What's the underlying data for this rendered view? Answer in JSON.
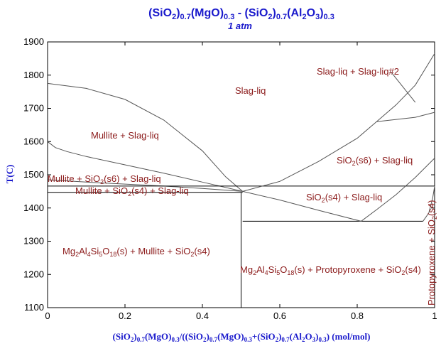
{
  "chart_data": {
    "type": "phase-diagram",
    "title": {
      "pre": "(SiO",
      "s1": "2",
      "m1": ")",
      "s2": "0.7",
      "m2": "(MgO)",
      "s3": "0.3",
      "m3": " - (SiO",
      "s4": "2",
      "m4": ")",
      "s5": "0.7",
      "m5": "(Al",
      "s6": "2",
      "m6": "O",
      "s7": "3",
      "m7": ")",
      "s8": "0.3"
    },
    "subtitle": "1 atm",
    "ylabel": "T(C)",
    "xlabel": {
      "a": "(SiO",
      "b": "2",
      "c": ")",
      "d": "0.7",
      "e": "(MgO)",
      "f": "0.3",
      "g": "/((SiO",
      "h": "2",
      "i": ")",
      "j": "0.7",
      "k": "(MgO)",
      "l": "0.3",
      "m": "+(SiO",
      "n": "2",
      "o": ")",
      "p": "0.7",
      "q": "(Al",
      "r": "2",
      "s": "O",
      "t": "3",
      "u": ")",
      "v": "0.3",
      "w": ") (mol/mol)"
    },
    "xlim": [
      0,
      1
    ],
    "ylim": [
      1100,
      1900
    ],
    "xticks": [
      "0",
      "0.2",
      "0.4",
      "0.6",
      "0.8",
      "1"
    ],
    "xtick_values": [
      0,
      0.2,
      0.4,
      0.6,
      0.8,
      1
    ],
    "yticks": [
      "1100",
      "1200",
      "1300",
      "1400",
      "1500",
      "1600",
      "1700",
      "1800",
      "1900"
    ],
    "ytick_values": [
      1100,
      1200,
      1300,
      1400,
      1500,
      1600,
      1700,
      1800,
      1900
    ],
    "grid": false,
    "colors": {
      "title": "#1a1acc",
      "labels": "#8b1a1a",
      "boundary": "#555555"
    },
    "boundaries": [
      {
        "name": "mullite-liquidus",
        "points": [
          [
            0,
            1775
          ],
          [
            0.1,
            1760
          ],
          [
            0.2,
            1727
          ],
          [
            0.3,
            1665
          ],
          [
            0.4,
            1572
          ],
          [
            0.46,
            1494
          ],
          [
            0.504,
            1450
          ]
        ]
      },
      {
        "name": "sio2-s6-mullite-upper",
        "points": [
          [
            0,
            1600
          ],
          [
            0.02,
            1582
          ],
          [
            0.05,
            1570
          ],
          [
            0.1,
            1555
          ],
          [
            0.2,
            1530
          ],
          [
            0.3,
            1505
          ],
          [
            0.4,
            1478
          ],
          [
            0.504,
            1450
          ]
        ]
      },
      {
        "name": "sio2-s6-mullite-lower",
        "points": [
          [
            0,
            1485
          ],
          [
            0.1,
            1478
          ],
          [
            0.2,
            1472
          ],
          [
            0.3,
            1466
          ],
          [
            0.4,
            1459
          ],
          [
            0.504,
            1450
          ]
        ]
      },
      {
        "name": "mullite-eutectic-line",
        "points": [
          [
            0,
            1447
          ],
          [
            0.504,
            1447
          ]
        ]
      },
      {
        "name": "s6-s4-transition",
        "points": [
          [
            0,
            1466
          ],
          [
            1,
            1466
          ]
        ]
      },
      {
        "name": "cordierite-join",
        "points": [
          [
            0.5,
            1100
          ],
          [
            0.5,
            1447
          ]
        ]
      },
      {
        "name": "protopyroxene-eutectic",
        "points": [
          [
            0.504,
            1360
          ],
          [
            0.97,
            1360
          ]
        ]
      },
      {
        "name": "sio2-liquidus",
        "points": [
          [
            0.504,
            1450
          ],
          [
            0.6,
            1480
          ],
          [
            0.7,
            1540
          ],
          [
            0.8,
            1610
          ],
          [
            0.85,
            1660
          ],
          [
            0.9,
            1710
          ],
          [
            0.95,
            1770
          ],
          [
            1,
            1865
          ]
        ]
      },
      {
        "name": "sio2-s4-liquidus",
        "points": [
          [
            0.504,
            1450
          ],
          [
            0.6,
            1424
          ],
          [
            0.7,
            1393
          ],
          [
            0.81,
            1360
          ],
          [
            0.85,
            1395
          ],
          [
            0.9,
            1440
          ],
          [
            0.95,
            1492
          ],
          [
            1,
            1550
          ]
        ]
      },
      {
        "name": "miscibility-gap-bottom",
        "points": [
          [
            0.85,
            1660
          ],
          [
            0.95,
            1673
          ],
          [
            1,
            1688
          ]
        ]
      },
      {
        "name": "miscibility-tie",
        "points": [
          [
            0.887,
            1810
          ],
          [
            0.95,
            1718
          ]
        ]
      },
      {
        "name": "protopyroxene-boundary",
        "points": [
          [
            0.97,
            1360
          ],
          [
            0.985,
            1385
          ],
          [
            0.995,
            1430
          ],
          [
            1,
            1466
          ]
        ]
      }
    ],
    "regions": {
      "slag_liq": "Slag-liq",
      "two_liq": "Slag-liq + Slag-liq#2",
      "mullite_liq": "Mullite + Slag-liq",
      "s6_liq": {
        "a": "SiO",
        "b": "2",
        "c": "(s6) + Slag-liq"
      },
      "mullite_s6_liq": {
        "a": "Mullite + SiO",
        "b": "2",
        "c": "(s6) + Slag-liq"
      },
      "mullite_s4_liq": {
        "a": "Mullite + SiO",
        "b": "2",
        "c": "(s4) + Slag-liq"
      },
      "s4_liq": {
        "a": "SiO",
        "b": "2",
        "c": "(s4) + Slag-liq"
      },
      "cord_mullite": {
        "a": "Mg",
        "b": "2",
        "c": "Al",
        "d": "4",
        "e": "Si",
        "f": "5",
        "g": "O",
        "h": "18",
        "i": "(s) + Mullite + SiO",
        "j": "2",
        "k": "(s4)"
      },
      "cord_proto": {
        "a": "Mg",
        "b": "2",
        "c": "Al",
        "d": "4",
        "e": "Si",
        "f": "5",
        "g": "O",
        "h": "18",
        "i": "(s) + Protopyroxene + SiO",
        "j": "2",
        "k": "(s4)"
      },
      "proto_vertical": {
        "a": "Protopyroxene + SiO",
        "b": "2",
        "c": "(s4)"
      }
    }
  }
}
